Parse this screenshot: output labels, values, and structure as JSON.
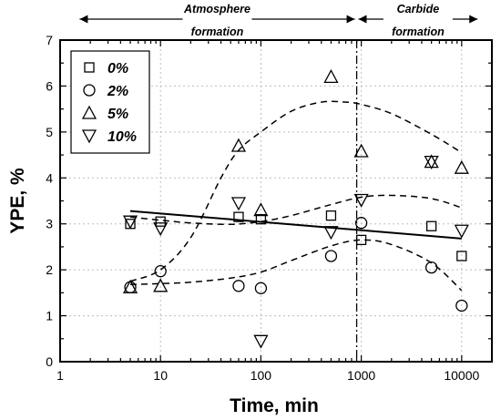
{
  "chart_data": {
    "type": "scatter",
    "xlabel": "Time, min",
    "ylabel": "YPE, %",
    "xscale": "log",
    "xlim": [
      1,
      20000
    ],
    "ylim": [
      0,
      7
    ],
    "xticks": [
      1,
      10,
      100,
      1000,
      10000
    ],
    "xtick_labels": [
      "1",
      "10",
      "100",
      "1000",
      "10000"
    ],
    "yticks": [
      0,
      1,
      2,
      3,
      4,
      5,
      6,
      7
    ],
    "ytick_labels": [
      "0",
      "1",
      "2",
      "3",
      "4",
      "5",
      "6",
      "7"
    ],
    "grid": true,
    "legend_position": "top-left",
    "series": [
      {
        "name": "0%",
        "marker": "square",
        "x": [
          5,
          10,
          60,
          100,
          500,
          1000,
          5000,
          10000
        ],
        "y": [
          3.0,
          3.05,
          3.15,
          3.1,
          3.18,
          2.65,
          2.95,
          2.3
        ]
      },
      {
        "name": "2%",
        "marker": "circle",
        "x": [
          5,
          10,
          60,
          100,
          500,
          1000,
          5000,
          10000
        ],
        "y": [
          1.62,
          1.97,
          1.65,
          1.6,
          2.3,
          3.02,
          2.05,
          1.22
        ]
      },
      {
        "name": "5%",
        "marker": "triangle-up",
        "x": [
          5,
          10,
          60,
          100,
          500,
          1000,
          5000,
          10000
        ],
        "y": [
          1.62,
          1.65,
          4.7,
          3.3,
          6.2,
          4.58,
          4.35,
          4.22
        ]
      },
      {
        "name": "10%",
        "marker": "triangle-down",
        "x": [
          5,
          10,
          60,
          100,
          500,
          1000,
          5000,
          10000
        ],
        "y": [
          3.05,
          2.9,
          3.45,
          0.45,
          2.82,
          3.52,
          4.35,
          2.85
        ]
      }
    ],
    "trend_lines": [
      {
        "style": "solid",
        "x": [
          5,
          10000
        ],
        "y": [
          3.28,
          2.68
        ]
      },
      {
        "style": "dashed",
        "x": [
          5,
          10,
          20,
          40,
          60,
          100,
          200,
          400,
          700,
          1000,
          2000,
          5000,
          10000
        ],
        "y": [
          1.75,
          2.0,
          2.7,
          4.0,
          4.6,
          5.0,
          5.45,
          5.65,
          5.65,
          5.6,
          5.4,
          4.95,
          4.55
        ]
      },
      {
        "style": "dashed",
        "x": [
          5,
          10,
          20,
          50,
          100,
          200,
          500,
          1000,
          2000,
          5000,
          10000
        ],
        "y": [
          3.15,
          3.08,
          3.02,
          2.99,
          3.05,
          3.18,
          3.42,
          3.58,
          3.62,
          3.55,
          3.35
        ]
      },
      {
        "style": "dashed",
        "x": [
          5,
          10,
          20,
          50,
          100,
          200,
          500,
          1000,
          2000,
          5000,
          10000
        ],
        "y": [
          1.68,
          1.7,
          1.73,
          1.82,
          1.95,
          2.2,
          2.52,
          2.65,
          2.55,
          2.15,
          1.55
        ]
      }
    ],
    "reference_line": {
      "style": "dash-dot",
      "x": 900
    },
    "annotations": [
      {
        "line1": "Atmosphere",
        "line2": "formation",
        "x_from": 1.5,
        "x_to": 900
      },
      {
        "line1": "Carbide",
        "line2": "formation",
        "x_from": 900,
        "x_to": 15000
      }
    ]
  },
  "colors": {
    "axis": "#000000",
    "grid": "#bdbdbd",
    "marker": "#000000",
    "background": "#ffffff"
  }
}
